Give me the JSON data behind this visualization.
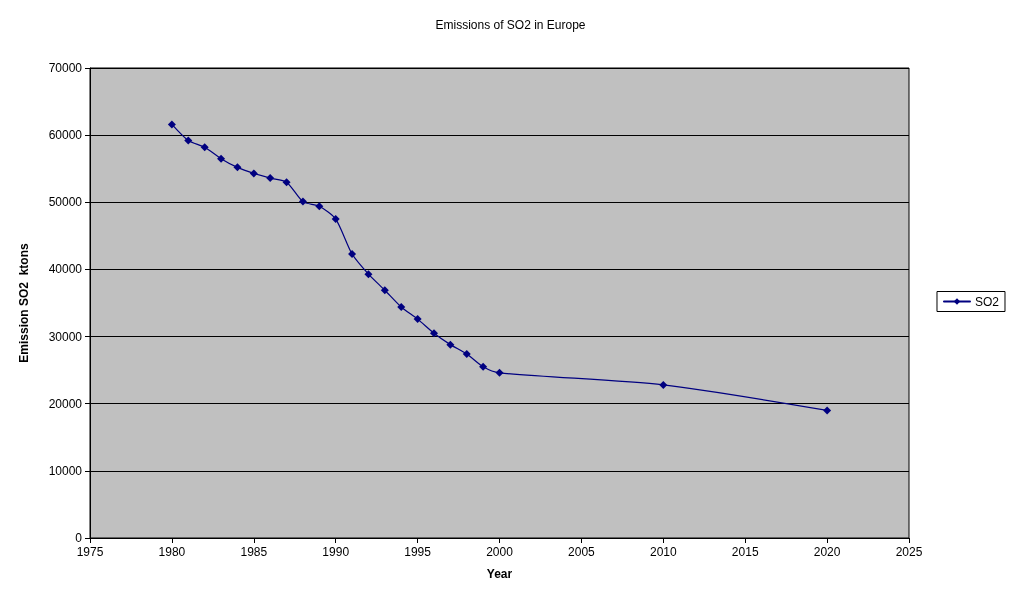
{
  "chart_data": {
    "type": "line",
    "title": "Emissions of SO2 in Europe",
    "xlabel": "Year",
    "ylabel": "Emission SO2  ktons",
    "xlim": [
      1975,
      2025
    ],
    "xticks": [
      1975,
      1980,
      1985,
      1990,
      1995,
      2000,
      2005,
      2010,
      2015,
      2020,
      2025
    ],
    "ylim": [
      0,
      70000
    ],
    "yticks": [
      0,
      10000,
      20000,
      30000,
      40000,
      50000,
      60000,
      70000
    ],
    "grid": "y",
    "legend": "right",
    "marker": "diamond",
    "line_style": "solid",
    "series": [
      {
        "name": "SO2",
        "color": "#000080",
        "x": [
          1980,
          1981,
          1982,
          1983,
          1984,
          1985,
          1986,
          1987,
          1988,
          1989,
          1990,
          1991,
          1992,
          1993,
          1994,
          1995,
          1996,
          1997,
          1998,
          1999,
          2000,
          2010,
          2020
        ],
        "values": [
          61600,
          59200,
          58200,
          56500,
          55200,
          54300,
          53600,
          53000,
          50100,
          49400,
          47500,
          42300,
          39300,
          36900,
          34400,
          32600,
          30500,
          28800,
          27400,
          25500,
          24600,
          22800,
          19000
        ]
      }
    ]
  }
}
